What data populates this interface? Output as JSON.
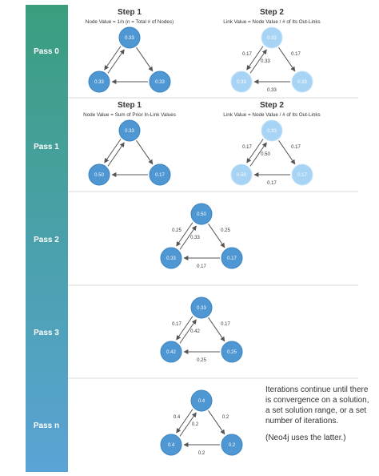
{
  "colors": {
    "bar_top": "#3a9e7e",
    "bar_bottom": "#5aa3d6",
    "node_dark": "#4f97d3",
    "node_light": "#a7d3f4",
    "text": "#333333",
    "divider": "#d9d9d9"
  },
  "rows": [
    {
      "label": "Pass 0",
      "panels": [
        {
          "step": "Step 1",
          "subtitle": "Node Value = 1/n (n = Total # of Nodes)",
          "light": false,
          "nodes": {
            "top": "0.33",
            "left": "0.33",
            "right": "0.33"
          },
          "edges": {
            "left_up": "",
            "top_right": "",
            "right_left": "",
            "top_left_down": ""
          }
        },
        {
          "step": "Step 2",
          "subtitle": "Link Value = Node Value / # of Its Out-Links",
          "light": true,
          "nodes": {
            "top": "0.33",
            "left": "0.33",
            "right": "0.33"
          },
          "edges": {
            "left_up": "0.17",
            "top_right": "0.17",
            "right_left": "0.33",
            "top_left_down": "0.33"
          }
        }
      ]
    },
    {
      "label": "Pass 1",
      "panels": [
        {
          "step": "Step 1",
          "subtitle": "Node Value = Sum of Prior In-Link Values",
          "light": false,
          "nodes": {
            "top": "0.33",
            "left": "0.50",
            "right": "0.17"
          },
          "edges": {
            "left_up": "",
            "top_right": "",
            "right_left": "",
            "top_left_down": ""
          }
        },
        {
          "step": "Step 2",
          "subtitle": "Link Value = Node Value / # of Its Out-Links",
          "light": true,
          "nodes": {
            "top": "0.33",
            "left": "0.50",
            "right": "0.17"
          },
          "edges": {
            "left_up": "0.17",
            "top_right": "0.17",
            "right_left": "0.17",
            "top_left_down": "0.50"
          }
        }
      ]
    },
    {
      "label": "Pass 2",
      "panels": [
        {
          "step": "",
          "subtitle": "",
          "light": false,
          "nodes": {
            "top": "0.50",
            "left": "0.33",
            "right": "0.17"
          },
          "edges": {
            "left_up": "0.25",
            "top_right": "0.25",
            "right_left": "0.17",
            "top_left_down": "0.33"
          }
        }
      ]
    },
    {
      "label": "Pass 3",
      "panels": [
        {
          "step": "",
          "subtitle": "",
          "light": false,
          "nodes": {
            "top": "0.33",
            "left": "0.42",
            "right": "0.25"
          },
          "edges": {
            "left_up": "0.17",
            "top_right": "0.17",
            "right_left": "0.25",
            "top_left_down": "0.42"
          }
        }
      ]
    },
    {
      "label": "Pass n",
      "panels": [
        {
          "step": "",
          "subtitle": "",
          "light": false,
          "nodes": {
            "top": "0.4",
            "left": "0.4",
            "right": "0.2"
          },
          "edges": {
            "left_up": "0.4",
            "top_right": "0.2",
            "right_left": "0.2",
            "top_left_down": "0.2"
          }
        }
      ]
    }
  ],
  "note": {
    "text": "Iterations continue until there is convergence on a solution, a set solution range, or a set number of iterations.",
    "aside": "(Neo4j uses the latter.)"
  }
}
